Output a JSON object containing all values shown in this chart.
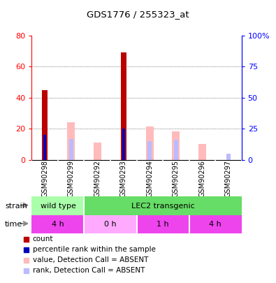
{
  "title": "GDS1776 / 255323_at",
  "samples": [
    "GSM90298",
    "GSM90299",
    "GSM90292",
    "GSM90293",
    "GSM90294",
    "GSM90295",
    "GSM90296",
    "GSM90297"
  ],
  "count_values": [
    45,
    0,
    0,
    69,
    0,
    0,
    0,
    0
  ],
  "percentile_rank_vals": [
    20,
    0,
    0,
    25,
    0,
    0,
    0,
    0
  ],
  "absent_value": [
    0,
    30,
    14,
    0,
    27,
    23,
    13,
    0
  ],
  "absent_rank": [
    0,
    17,
    0,
    0,
    15,
    16,
    0,
    5
  ],
  "absent_rank_only": [
    0,
    0,
    0,
    0,
    0,
    0,
    0,
    5
  ],
  "ylim_left": [
    0,
    80
  ],
  "ylim_right": [
    0,
    100
  ],
  "yticks_left": [
    0,
    20,
    40,
    60,
    80
  ],
  "yticks_right": [
    0,
    25,
    50,
    75,
    100
  ],
  "ytick_labels_right": [
    "0",
    "25",
    "50",
    "75",
    "100%"
  ],
  "strain_colors": [
    "#aaffaa",
    "#66dd66"
  ],
  "strain_labels": [
    {
      "label": "wild type",
      "start": 0,
      "end": 2,
      "color": "#aaffaa"
    },
    {
      "label": "LEC2 transgenic",
      "start": 2,
      "end": 8,
      "color": "#66dd66"
    }
  ],
  "time_labels": [
    {
      "label": "4 h",
      "start": 0,
      "end": 2,
      "color": "#ee44ee"
    },
    {
      "label": "0 h",
      "start": 2,
      "end": 4,
      "color": "#ffaaff"
    },
    {
      "label": "1 h",
      "start": 4,
      "end": 6,
      "color": "#ee44ee"
    },
    {
      "label": "4 h",
      "start": 6,
      "end": 8,
      "color": "#ee44ee"
    }
  ],
  "count_color": "#bb0000",
  "percentile_color": "#0000bb",
  "absent_value_color": "#ffbbbb",
  "absent_rank_color": "#bbbbff",
  "legend_items": [
    {
      "label": "count",
      "color": "#bb0000"
    },
    {
      "label": "percentile rank within the sample",
      "color": "#0000bb"
    },
    {
      "label": "value, Detection Call = ABSENT",
      "color": "#ffbbbb"
    },
    {
      "label": "rank, Detection Call = ABSENT",
      "color": "#bbbbff"
    }
  ],
  "bg_color": "#ffffff"
}
